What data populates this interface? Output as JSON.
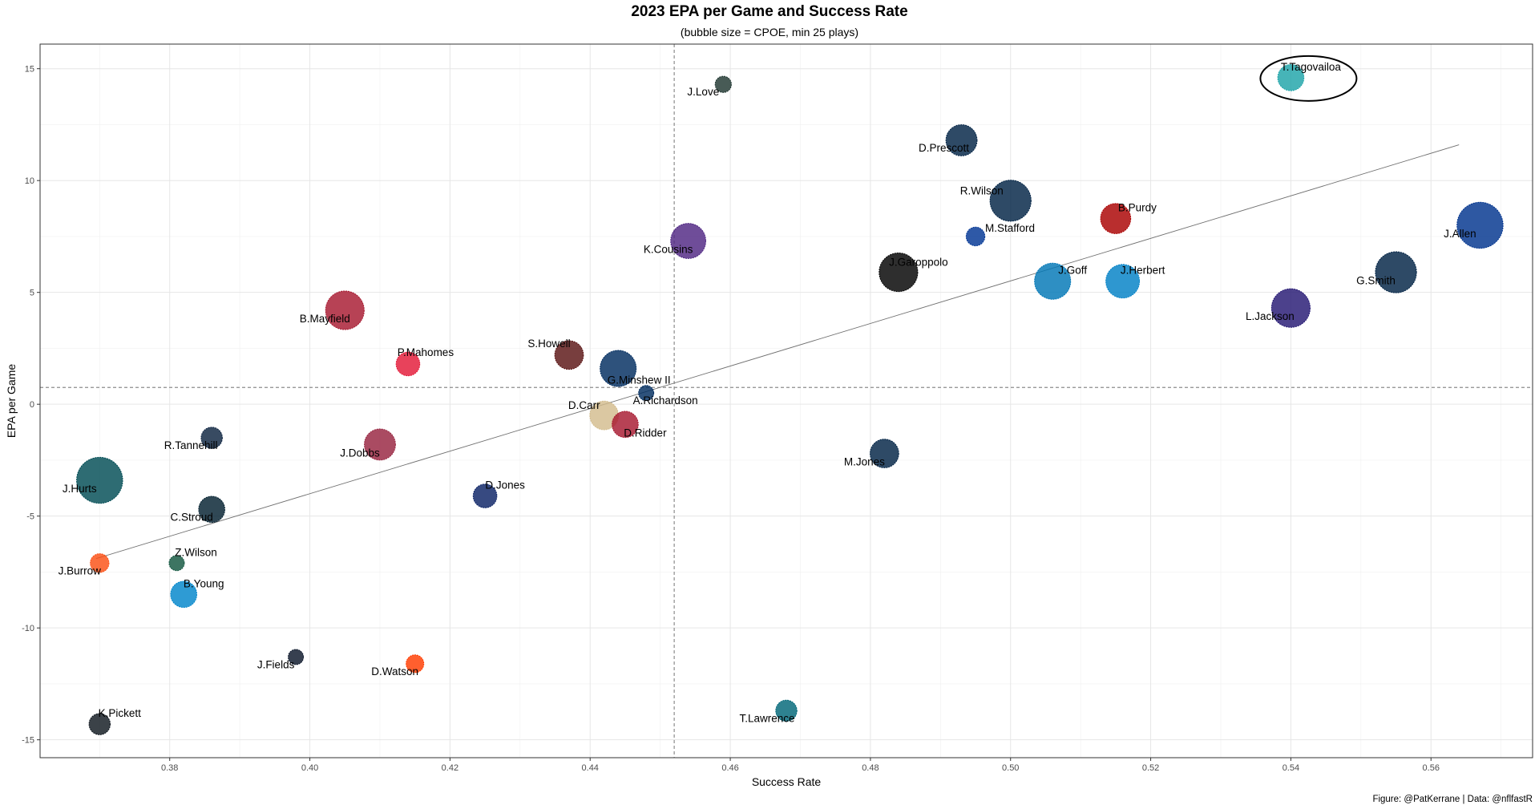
{
  "chart_data": {
    "type": "scatter",
    "title": "2023 EPA per Game and Success Rate",
    "subtitle": "(bubble size = CPOE, min 25 plays)",
    "xlabel": "Success Rate",
    "ylabel": "EPA per Game",
    "caption": "Figure: @PatKerrane | Data: @nflfastR",
    "xlim": [
      0.3615,
      0.5745
    ],
    "ylim": [
      -15.8,
      16.1
    ],
    "x_ticks": [
      0.38,
      0.4,
      0.42,
      0.44,
      0.46,
      0.48,
      0.5,
      0.52,
      0.54,
      0.56
    ],
    "x_tick_labels": [
      "0.38",
      "0.40",
      "0.42",
      "0.44",
      "0.46",
      "0.48",
      "0.50",
      "0.52",
      "0.54",
      "0.56"
    ],
    "y_ticks": [
      -15,
      -10,
      -5,
      0,
      5,
      10,
      15
    ],
    "y_tick_labels": [
      "-15",
      "-10",
      "-5",
      "0",
      "5",
      "10",
      "15"
    ],
    "grid": true,
    "reference_lines": {
      "x_mean": 0.452,
      "y_mean": 0.75
    },
    "trend_line": {
      "x": [
        0.3695,
        0.564
      ],
      "y": [
        -6.9,
        11.6
      ]
    },
    "highlight": "T.Tagovailoa",
    "points": [
      {
        "label": "T.Tagovailoa",
        "x": 0.54,
        "y": 14.6,
        "size": 3.0,
        "color": "#1da4a8"
      },
      {
        "label": "J.Love",
        "x": 0.459,
        "y": 14.3,
        "size": 1.0,
        "color": "#203731"
      },
      {
        "label": "D.Prescott",
        "x": 0.493,
        "y": 11.8,
        "size": 4.0,
        "color": "#002244"
      },
      {
        "label": "R.Wilson",
        "x": 0.5,
        "y": 9.1,
        "size": 6.0,
        "color": "#002244"
      },
      {
        "label": "B.Purdy",
        "x": 0.515,
        "y": 8.3,
        "size": 3.8,
        "color": "#aa0000"
      },
      {
        "label": "M.Stafford",
        "x": 0.495,
        "y": 7.5,
        "size": 1.5,
        "color": "#003594"
      },
      {
        "label": "J.Allen",
        "x": 0.567,
        "y": 8.0,
        "size": 7.0,
        "color": "#00338d"
      },
      {
        "label": "K.Cousins",
        "x": 0.454,
        "y": 7.3,
        "size": 4.8,
        "color": "#4f2683"
      },
      {
        "label": "J.Garoppolo",
        "x": 0.484,
        "y": 5.9,
        "size": 5.5,
        "color": "#000000"
      },
      {
        "label": "J.Goff",
        "x": 0.506,
        "y": 5.5,
        "size": 5.0,
        "color": "#0076b6"
      },
      {
        "label": "J.Herbert",
        "x": 0.516,
        "y": 5.5,
        "size": 4.5,
        "color": "#0080c6"
      },
      {
        "label": "G.Smith",
        "x": 0.555,
        "y": 5.9,
        "size": 6.0,
        "color": "#002244"
      },
      {
        "label": "L.Jackson",
        "x": 0.54,
        "y": 4.3,
        "size": 5.5,
        "color": "#241773"
      },
      {
        "label": "B.Mayfield",
        "x": 0.405,
        "y": 4.2,
        "size": 5.5,
        "color": "#a71930"
      },
      {
        "label": "P.Mahomes",
        "x": 0.414,
        "y": 1.8,
        "size": 2.5,
        "color": "#e31837"
      },
      {
        "label": "S.Howell",
        "x": 0.437,
        "y": 2.2,
        "size": 3.5,
        "color": "#5a1414"
      },
      {
        "label": "G.Minshew II",
        "x": 0.444,
        "y": 1.6,
        "size": 5.0,
        "color": "#002c5f"
      },
      {
        "label": "A.Richardson",
        "x": 0.448,
        "y": 0.5,
        "size": 0.8,
        "color": "#002c5f"
      },
      {
        "label": "D.Carr",
        "x": 0.442,
        "y": -0.5,
        "size": 3.5,
        "color": "#d3bc8d"
      },
      {
        "label": "D.Ridder",
        "x": 0.445,
        "y": -0.9,
        "size": 3.0,
        "color": "#a71930"
      },
      {
        "label": "R.Tannehill",
        "x": 0.386,
        "y": -1.5,
        "size": 2.0,
        "color": "#0c2340"
      },
      {
        "label": "J.Dobbs",
        "x": 0.41,
        "y": -1.8,
        "size": 4.0,
        "color": "#97233f"
      },
      {
        "label": "M.Jones",
        "x": 0.482,
        "y": -2.2,
        "size": 3.5,
        "color": "#002244"
      },
      {
        "label": "J.Hurts",
        "x": 0.37,
        "y": -3.4,
        "size": 7.0,
        "color": "#004c54"
      },
      {
        "label": "D.Jones",
        "x": 0.425,
        "y": -4.1,
        "size": 2.5,
        "color": "#0b2265"
      },
      {
        "label": "C.Stroud",
        "x": 0.386,
        "y": -4.7,
        "size": 3.0,
        "color": "#03202f"
      },
      {
        "label": "J.Burrow",
        "x": 0.37,
        "y": -7.1,
        "size": 1.5,
        "color": "#fb4f14"
      },
      {
        "label": "Z.Wilson",
        "x": 0.381,
        "y": -7.1,
        "size": 0.8,
        "color": "#125740"
      },
      {
        "label": "B.Young",
        "x": 0.382,
        "y": -8.5,
        "size": 3.0,
        "color": "#0085ca"
      },
      {
        "label": "J.Fields",
        "x": 0.398,
        "y": -11.3,
        "size": 0.8,
        "color": "#0b162a"
      },
      {
        "label": "D.Watson",
        "x": 0.415,
        "y": -11.6,
        "size": 1.3,
        "color": "#ff3c00"
      },
      {
        "label": "T.Lawrence",
        "x": 0.468,
        "y": -13.7,
        "size": 2.0,
        "color": "#006778"
      },
      {
        "label": "K.Pickett",
        "x": 0.37,
        "y": -14.3,
        "size": 2.0,
        "color": "#101820"
      }
    ]
  }
}
